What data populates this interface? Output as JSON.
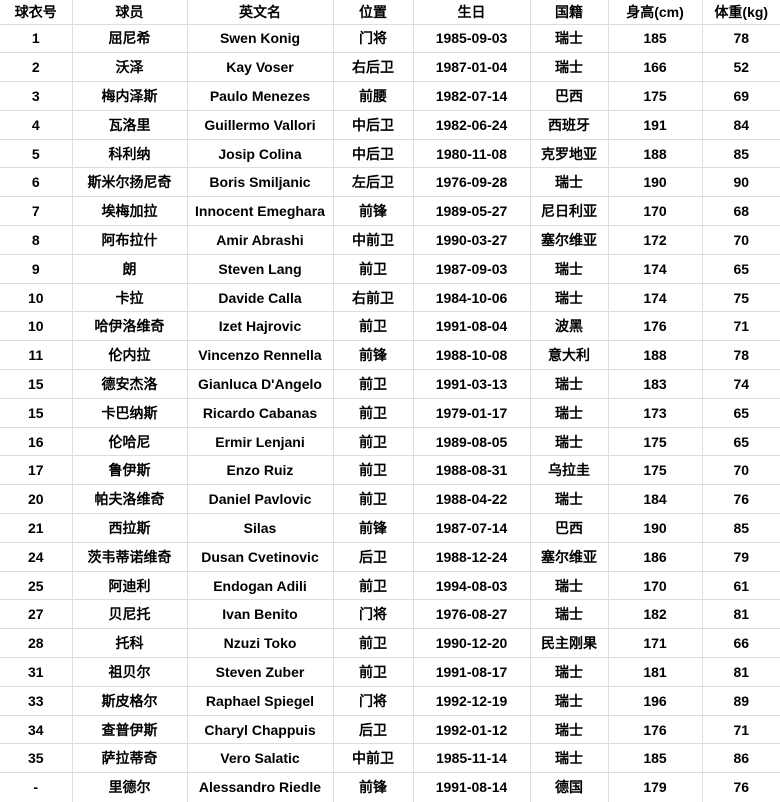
{
  "colors": {
    "background": "#ffffff",
    "border": "#dedede",
    "text": "#000000"
  },
  "chart_data": {
    "type": "table",
    "columns": [
      "球衣号",
      "球员",
      "英文名",
      "位置",
      "生日",
      "国籍",
      "身高(cm)",
      "体重(kg)"
    ],
    "column_keys": [
      "jersey-number",
      "player-name-cn",
      "english-name",
      "position",
      "birthday",
      "nationality",
      "height-cm",
      "weight-kg"
    ],
    "rows": [
      [
        "1",
        "屈尼希",
        "Swen Konig",
        "门将",
        "1985-09-03",
        "瑞士",
        "185",
        "78"
      ],
      [
        "2",
        "沃泽",
        "Kay Voser",
        "右后卫",
        "1987-01-04",
        "瑞士",
        "166",
        "52"
      ],
      [
        "3",
        "梅内泽斯",
        "Paulo Menezes",
        "前腰",
        "1982-07-14",
        "巴西",
        "175",
        "69"
      ],
      [
        "4",
        "瓦洛里",
        "Guillermo Vallori",
        "中后卫",
        "1982-06-24",
        "西班牙",
        "191",
        "84"
      ],
      [
        "5",
        "科利纳",
        "Josip Colina",
        "中后卫",
        "1980-11-08",
        "克罗地亚",
        "188",
        "85"
      ],
      [
        "6",
        "斯米尔扬尼奇",
        "Boris Smiljanic",
        "左后卫",
        "1976-09-28",
        "瑞士",
        "190",
        "90"
      ],
      [
        "7",
        "埃梅加拉",
        "Innocent Emeghara",
        "前锋",
        "1989-05-27",
        "尼日利亚",
        "170",
        "68"
      ],
      [
        "8",
        "阿布拉什",
        "Amir Abrashi",
        "中前卫",
        "1990-03-27",
        "塞尔维亚",
        "172",
        "70"
      ],
      [
        "9",
        "朗",
        "Steven Lang",
        "前卫",
        "1987-09-03",
        "瑞士",
        "174",
        "65"
      ],
      [
        "10",
        "卡拉",
        "Davide Calla",
        "右前卫",
        "1984-10-06",
        "瑞士",
        "174",
        "75"
      ],
      [
        "10",
        "哈伊洛维奇",
        "Izet Hajrovic",
        "前卫",
        "1991-08-04",
        "波黑",
        "176",
        "71"
      ],
      [
        "11",
        "伦内拉",
        "Vincenzo Rennella",
        "前锋",
        "1988-10-08",
        "意大利",
        "188",
        "78"
      ],
      [
        "15",
        "德安杰洛",
        "Gianluca D'Angelo",
        "前卫",
        "1991-03-13",
        "瑞士",
        "183",
        "74"
      ],
      [
        "15",
        "卡巴纳斯",
        "Ricardo Cabanas",
        "前卫",
        "1979-01-17",
        "瑞士",
        "173",
        "65"
      ],
      [
        "16",
        "伦哈尼",
        "Ermir Lenjani",
        "前卫",
        "1989-08-05",
        "瑞士",
        "175",
        "65"
      ],
      [
        "17",
        "鲁伊斯",
        "Enzo Ruiz",
        "前卫",
        "1988-08-31",
        "乌拉圭",
        "175",
        "70"
      ],
      [
        "20",
        "帕夫洛维奇",
        "Daniel Pavlovic",
        "前卫",
        "1988-04-22",
        "瑞士",
        "184",
        "76"
      ],
      [
        "21",
        "西拉斯",
        "Silas",
        "前锋",
        "1987-07-14",
        "巴西",
        "190",
        "85"
      ],
      [
        "24",
        "茨韦蒂诺维奇",
        "Dusan Cvetinovic",
        "后卫",
        "1988-12-24",
        "塞尔维亚",
        "186",
        "79"
      ],
      [
        "25",
        "阿迪利",
        "Endogan Adili",
        "前卫",
        "1994-08-03",
        "瑞士",
        "170",
        "61"
      ],
      [
        "27",
        "贝尼托",
        "Ivan Benito",
        "门将",
        "1976-08-27",
        "瑞士",
        "182",
        "81"
      ],
      [
        "28",
        "托科",
        "Nzuzi Toko",
        "前卫",
        "1990-12-20",
        "民主刚果",
        "171",
        "66"
      ],
      [
        "31",
        "祖贝尔",
        "Steven Zuber",
        "前卫",
        "1991-08-17",
        "瑞士",
        "181",
        "81"
      ],
      [
        "33",
        "斯皮格尔",
        "Raphael Spiegel",
        "门将",
        "1992-12-19",
        "瑞士",
        "196",
        "89"
      ],
      [
        "34",
        "查普伊斯",
        "Charyl Chappuis",
        "后卫",
        "1992-01-12",
        "瑞士",
        "176",
        "71"
      ],
      [
        "35",
        "萨拉蒂奇",
        "Vero Salatic",
        "中前卫",
        "1985-11-14",
        "瑞士",
        "185",
        "86"
      ],
      [
        "-",
        "里德尔",
        "Alessandro Riedle",
        "前锋",
        "1991-08-14",
        "德国",
        "179",
        "76"
      ]
    ]
  }
}
